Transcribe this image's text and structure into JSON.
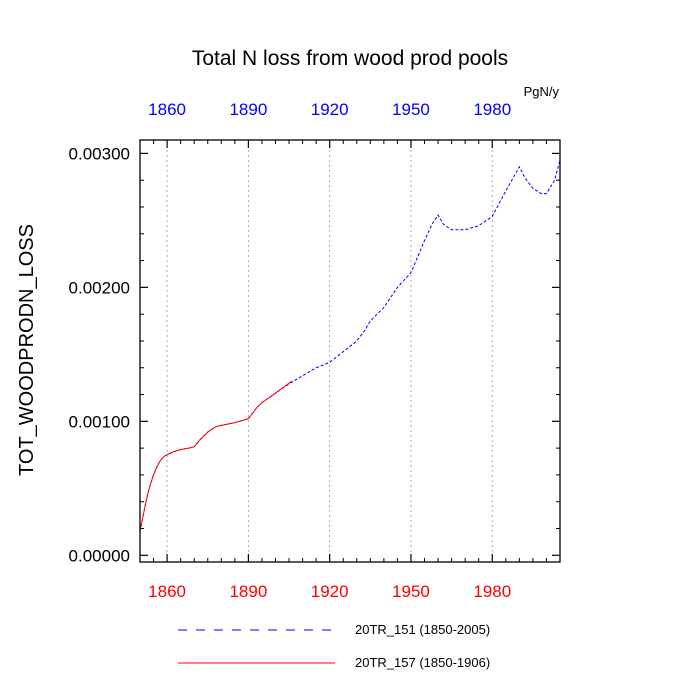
{
  "chart_data": {
    "type": "line",
    "title": "Total N loss from wood prod pools",
    "ylabel": "TOT_WOODPRODN_LOSS",
    "units": "PgN/y",
    "xlim": [
      1850,
      2005
    ],
    "ylim": [
      -5e-05,
      0.0031
    ],
    "x_ticks": [
      1860,
      1890,
      1920,
      1950,
      1980
    ],
    "x_tick_labels": [
      "1860",
      "1890",
      "1920",
      "1950",
      "1980"
    ],
    "y_ticks": [
      0.0,
      0.001,
      0.002,
      0.003
    ],
    "y_tick_labels": [
      "0.00000",
      "0.00100",
      "0.00200",
      "0.00300"
    ],
    "top_axis_color": "#0000ff",
    "bottom_axis_color": "#ff0000",
    "vertical_grid": true,
    "legend_placement": "bottom",
    "series": [
      {
        "name": "20TR_151 (1850-2005)",
        "color": "#0000ff",
        "dash": "dashed",
        "x": [
          1850,
          1851,
          1852,
          1853,
          1854,
          1855,
          1856,
          1857,
          1858,
          1859,
          1860,
          1862,
          1865,
          1868,
          1870,
          1872,
          1875,
          1878,
          1880,
          1885,
          1890,
          1893,
          1895,
          1900,
          1905,
          1910,
          1915,
          1920,
          1925,
          1930,
          1933,
          1935,
          1940,
          1945,
          1950,
          1955,
          1958,
          1960,
          1962,
          1965,
          1970,
          1975,
          1980,
          1985,
          1990,
          1992,
          1995,
          1998,
          2000,
          2003,
          2005
        ],
        "y": [
          0.00018,
          0.00028,
          0.00038,
          0.00047,
          0.00054,
          0.0006,
          0.00065,
          0.00069,
          0.00072,
          0.00074,
          0.00075,
          0.00077,
          0.00079,
          0.0008,
          0.00081,
          0.00086,
          0.00092,
          0.00096,
          0.00097,
          0.00099,
          0.00102,
          0.0011,
          0.00114,
          0.00121,
          0.00128,
          0.00134,
          0.0014,
          0.00144,
          0.00152,
          0.0016,
          0.00168,
          0.00175,
          0.00185,
          0.002,
          0.00211,
          0.00235,
          0.00248,
          0.00254,
          0.00247,
          0.00243,
          0.00243,
          0.00246,
          0.00253,
          0.00272,
          0.0029,
          0.00282,
          0.00274,
          0.0027,
          0.0027,
          0.0028,
          0.00295
        ]
      },
      {
        "name": "20TR_157 (1850-1906)",
        "color": "#ff0000",
        "dash": "solid",
        "x": [
          1850,
          1851,
          1852,
          1853,
          1854,
          1855,
          1856,
          1857,
          1858,
          1859,
          1860,
          1862,
          1865,
          1868,
          1870,
          1872,
          1875,
          1878,
          1880,
          1885,
          1890,
          1893,
          1895,
          1900,
          1906
        ],
        "y": [
          0.00018,
          0.00028,
          0.00038,
          0.00047,
          0.00054,
          0.0006,
          0.00065,
          0.00069,
          0.00072,
          0.00074,
          0.00075,
          0.00077,
          0.00079,
          0.0008,
          0.00081,
          0.00086,
          0.00092,
          0.00096,
          0.00097,
          0.00099,
          0.00102,
          0.0011,
          0.00114,
          0.00121,
          0.0013
        ]
      }
    ]
  }
}
